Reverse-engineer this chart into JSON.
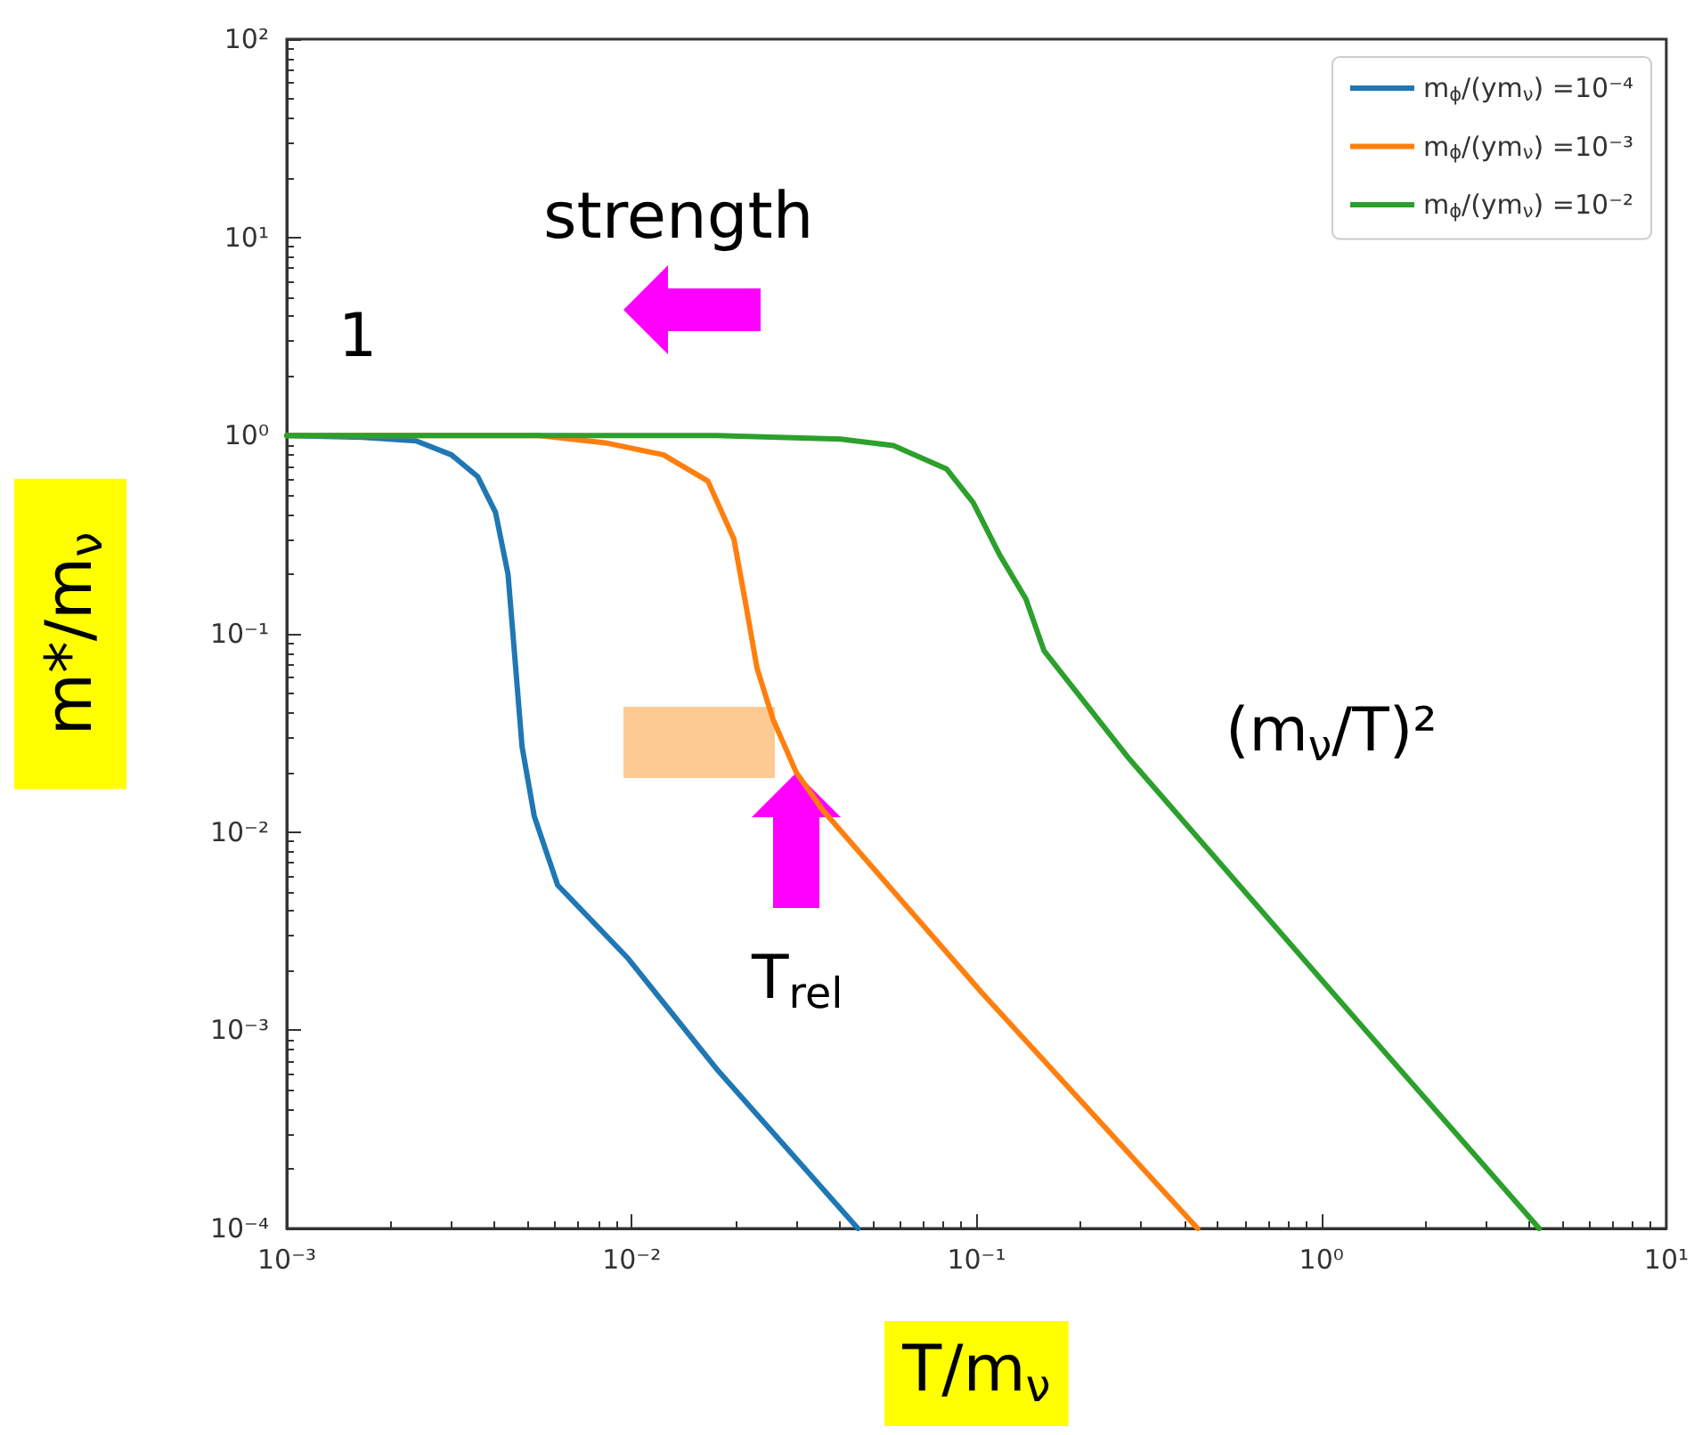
{
  "chart_data": {
    "type": "line",
    "xlabel": "T/m$_{ν}$",
    "ylabel": "m*/m$_{ν}$",
    "log": "xy",
    "xlim": [
      0.001,
      10
    ],
    "ylim": [
      0.0001,
      100
    ],
    "xticks": [
      {
        "value": 0.001,
        "label": "10⁻³"
      },
      {
        "value": 0.01,
        "label": "10⁻²"
      },
      {
        "value": 0.1,
        "label": "10⁻¹"
      },
      {
        "value": 1,
        "label": "10⁰"
      },
      {
        "value": 10,
        "label": "10¹"
      }
    ],
    "yticks": [
      {
        "value": 0.0001,
        "label": "10⁻⁴"
      },
      {
        "value": 0.001,
        "label": "10⁻³"
      },
      {
        "value": 0.01,
        "label": "10⁻²"
      },
      {
        "value": 0.1,
        "label": "10⁻¹"
      },
      {
        "value": 1,
        "label": "10⁰"
      },
      {
        "value": 10,
        "label": "10¹"
      },
      {
        "value": 100,
        "label": "10²"
      }
    ],
    "grid": false,
    "legend": "top right",
    "marker": "none",
    "line_style": "solid",
    "series": [
      {
        "name": "m$_{ϕ}$/(ym$_{ν}$) =10⁻⁴",
        "color": "#1f77b4",
        "x": [
          0.001,
          0.00166,
          0.00237,
          0.003,
          0.00358,
          0.00403,
          0.00438,
          0.00459,
          0.00481,
          0.00522,
          0.0061,
          0.00977,
          0.0176,
          0.0453
        ],
        "values": [
          1,
          0.98,
          0.94,
          0.8,
          0.62,
          0.41,
          0.2,
          0.074,
          0.027,
          0.012,
          0.0054,
          0.0023,
          0.00064,
          0.0001
        ]
      },
      {
        "name": "m$_{ϕ}$/(ym$_{ν}$) =10⁻³",
        "color": "#ff7f0e",
        "x": [
          0.001,
          0.0054,
          0.00838,
          0.01236,
          0.01663,
          0.0198,
          0.0215,
          0.0231,
          0.0257,
          0.03,
          0.0358,
          0.1035,
          0.4375
        ],
        "values": [
          1,
          1,
          0.92,
          0.8,
          0.59,
          0.3,
          0.136,
          0.067,
          0.037,
          0.02,
          0.0129,
          0.00155,
          0.0001
        ]
      },
      {
        "name": "m$_{ϕ}$/(ym$_{ν}$) =10⁻²",
        "color": "#2ca02c",
        "x": [
          0.001,
          0.0176,
          0.0403,
          0.0574,
          0.0818,
          0.0977,
          0.1167,
          0.139,
          0.157,
          0.276,
          1.099,
          4.28
        ],
        "values": [
          1,
          1,
          0.96,
          0.89,
          0.68,
          0.46,
          0.25,
          0.15,
          0.082,
          0.0236,
          0.00149,
          0.0001
        ]
      }
    ],
    "annotations": [
      "strength",
      "1",
      {
        "text": "T$_{rel}$",
        "x": 0.03,
        "y": 0.02
      },
      "(m$_{ν}$/T)²"
    ]
  }
}
